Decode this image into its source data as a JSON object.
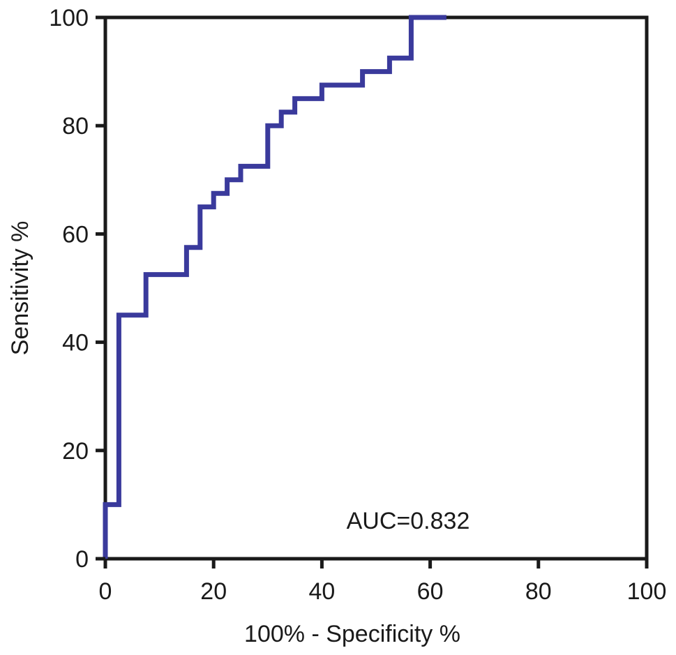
{
  "chart_data": {
    "type": "line",
    "title": "",
    "xlabel": "100% - Specificity %",
    "ylabel": "Sensitivity %",
    "xlim": [
      0,
      100
    ],
    "ylim": [
      0,
      100
    ],
    "xticks": [
      "0",
      "20",
      "40",
      "60",
      "80",
      "100"
    ],
    "yticks": [
      "0",
      "20",
      "40",
      "60",
      "80",
      "100"
    ],
    "grid": false,
    "legend": "none",
    "annotation": "AUC=0.832",
    "line_color": "#3a3a9c",
    "series": [
      {
        "x": [
          0,
          0,
          2.5,
          2.5,
          7.5,
          7.5,
          15,
          15,
          17.5,
          17.5,
          20,
          20,
          22.5,
          22.5,
          25,
          25,
          30,
          30,
          32.5,
          32.5,
          35,
          35,
          40,
          40,
          47.5,
          47.5,
          52.5,
          52.5,
          56.5,
          56.5,
          63
        ],
        "y": [
          0,
          10,
          10,
          45,
          45,
          52.5,
          52.5,
          57.5,
          57.5,
          65,
          65,
          67.5,
          67.5,
          70,
          70,
          72.5,
          72.5,
          80,
          80,
          82.5,
          82.5,
          85,
          85,
          87.5,
          87.5,
          90,
          90,
          92.5,
          92.5,
          100,
          100
        ]
      }
    ]
  }
}
